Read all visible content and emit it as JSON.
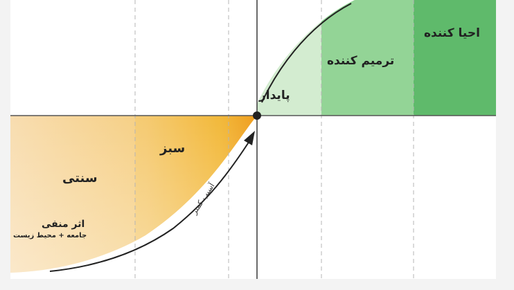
{
  "zones": {
    "regenerative": "احیا کننده",
    "restorative": "ترمیم کننده",
    "sustainable": "پایدار",
    "green": "سبز",
    "traditional": "سنتی"
  },
  "negative_impact": {
    "title": "اثر منفی",
    "subtitle": "جامعه + محیط زیست"
  },
  "curve_label": "آسیب کمتر",
  "colors": {
    "regenerative": "#5cb86a",
    "restorative": "#8fd194",
    "sustainable": "#cbe9c9",
    "green": "#f2bb3c",
    "traditional": "#f6d58e",
    "axis": "#333333",
    "grid": "#b5b5b5"
  }
}
